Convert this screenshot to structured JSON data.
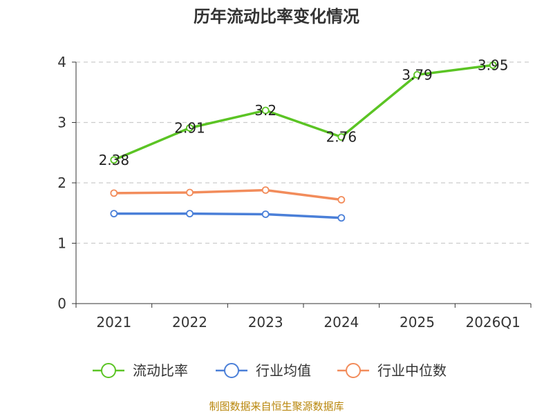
{
  "chart_data": {
    "type": "line",
    "title": "历年流动比率变化情况",
    "categories": [
      "2021",
      "2022",
      "2023",
      "2024",
      "2025",
      "2026Q1"
    ],
    "ylim": [
      0,
      4
    ],
    "yticks": [
      "0",
      "1",
      "2",
      "3",
      "4"
    ],
    "grid": true,
    "legend_position": "bottom",
    "series": [
      {
        "name": "流动比率",
        "color": "#5bc424",
        "values": [
          2.38,
          2.91,
          3.2,
          2.76,
          3.79,
          3.95
        ],
        "labels": [
          "2.38",
          "2.91",
          "3.2",
          "2.76",
          "3.79",
          "3.95"
        ]
      },
      {
        "name": "行业均值",
        "color": "#4a7fd8",
        "values": [
          1.49,
          1.49,
          1.48,
          1.42,
          null,
          null
        ]
      },
      {
        "name": "行业中位数",
        "color": "#f28c5b",
        "values": [
          1.83,
          1.84,
          1.88,
          1.72,
          null,
          null
        ]
      }
    ],
    "source": "制图数据来自恒生聚源数据库"
  }
}
